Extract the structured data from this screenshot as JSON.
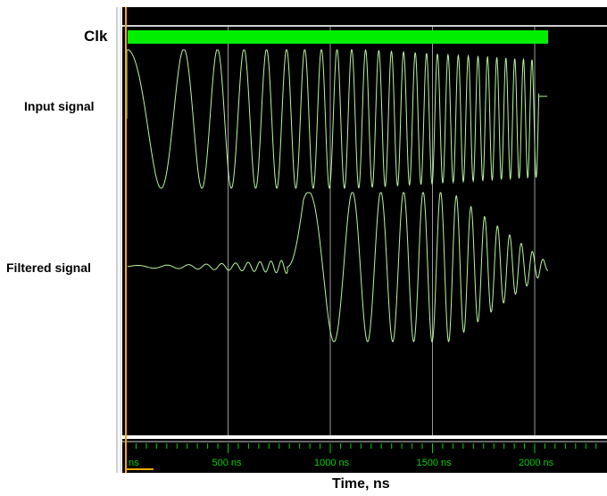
{
  "signals": {
    "clk": "Clk",
    "input": "Input signal",
    "filtered": "Filtered signal"
  },
  "timeline": {
    "axis_label": "Time, ns",
    "ticks": [
      {
        "t": 0,
        "label": "ns"
      },
      {
        "t": 500,
        "label": "500 ns"
      },
      {
        "t": 1000,
        "label": "1000 ns"
      },
      {
        "t": 1500,
        "label": "1500 ns"
      },
      {
        "t": 2000,
        "label": "2000 ns"
      }
    ]
  },
  "colors": {
    "background": "#000000",
    "clock_bar": "#00ee00",
    "waveform": "#b8f5a0",
    "grid": "#9a9a9a",
    "cursor": "#f5a800",
    "tick_text": "#00d000",
    "divider": "#cfcfcf"
  }
}
